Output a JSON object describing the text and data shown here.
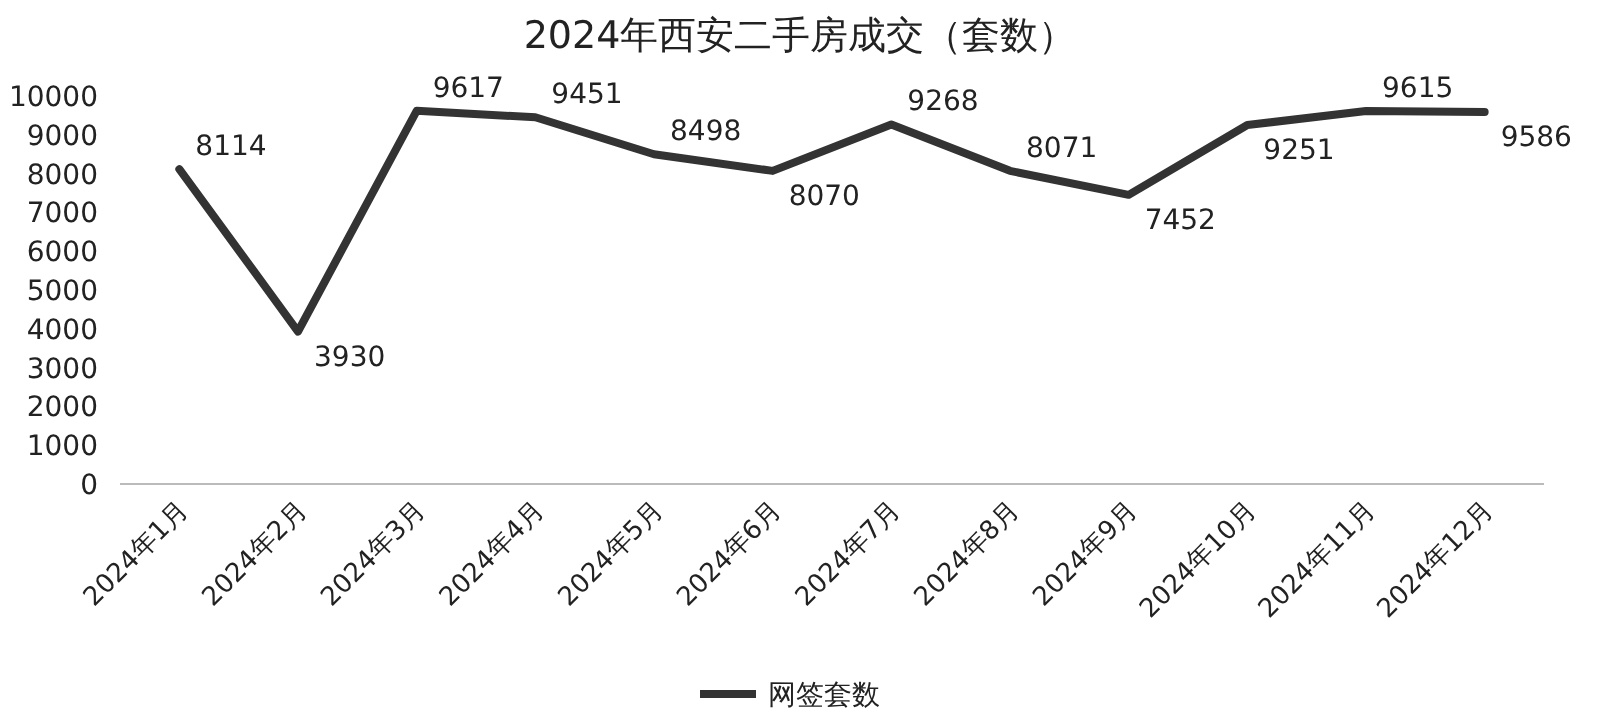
{
  "chart_data": {
    "type": "line",
    "title": "2024年西安二手房成交（套数）",
    "categories": [
      "2024年1月",
      "2024年2月",
      "2024年3月",
      "2024年4月",
      "2024年5月",
      "2024年6月",
      "2024年7月",
      "2024年8月",
      "2024年9月",
      "2024年10月",
      "2024年11月",
      "2024年12月"
    ],
    "series": [
      {
        "name": "网签套数",
        "color": "#333333",
        "values": [
          8114,
          3930,
          9617,
          9451,
          8498,
          8070,
          9268,
          8071,
          7452,
          9251,
          9615,
          9586
        ]
      }
    ],
    "ylim": [
      0,
      10000
    ],
    "yticks": [
      0,
      1000,
      2000,
      3000,
      4000,
      5000,
      6000,
      7000,
      8000,
      9000,
      10000
    ],
    "data_labels": true,
    "legend": "bottom",
    "grid": false
  }
}
